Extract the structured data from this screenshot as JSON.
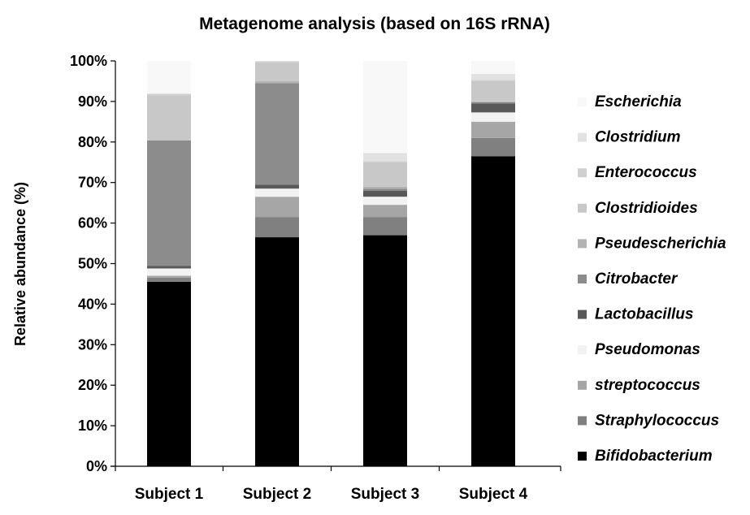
{
  "chart_data": {
    "type": "bar",
    "stacked": true,
    "title": "Metagenome analysis (based on 16S rRNA)",
    "xlabel": "",
    "ylabel": "Relative abundance (%)",
    "ylim": [
      0,
      100
    ],
    "y_ticks": [
      "0%",
      "10%",
      "20%",
      "30%",
      "40%",
      "50%",
      "60%",
      "70%",
      "80%",
      "90%",
      "100%"
    ],
    "categories": [
      "Subject 1",
      "Subject 2",
      "Subject 3",
      "Subject 4"
    ],
    "legend_position": "right",
    "series": [
      {
        "name": "Bifidobacterium",
        "color": "#000000",
        "values": [
          45.5,
          56.5,
          57.0,
          76.5
        ]
      },
      {
        "name": "Straphylococcus",
        "color": "#808080",
        "values": [
          1.0,
          5.0,
          4.5,
          4.5
        ]
      },
      {
        "name": "streptococcus",
        "color": "#a6a6a6",
        "values": [
          0.5,
          5.0,
          3.0,
          4.0
        ]
      },
      {
        "name": "Pseudomonas",
        "color": "#f2f2f2",
        "values": [
          1.8,
          2.0,
          2.0,
          2.3
        ]
      },
      {
        "name": "Lactobacillus",
        "color": "#595959",
        "values": [
          0.6,
          1.0,
          1.5,
          2.2
        ]
      },
      {
        "name": "Citrobacter",
        "color": "#8c8c8c",
        "values": [
          31.0,
          25.0,
          0.5,
          0.3
        ]
      },
      {
        "name": "Pseudescherichia",
        "color": "#b3b3b3",
        "values": [
          0.1,
          0.5,
          0.5,
          0.2
        ]
      },
      {
        "name": "Clostridioides",
        "color": "#c8c8c8",
        "values": [
          11.0,
          4.5,
          6.0,
          5.0
        ]
      },
      {
        "name": "Enterococcus",
        "color": "#d0d0d0",
        "values": [
          0.3,
          0.3,
          0.3,
          0.3
        ]
      },
      {
        "name": "Clostridium",
        "color": "#e2e2e2",
        "values": [
          0.2,
          0.2,
          2.0,
          1.5
        ]
      },
      {
        "name": "Escherichia",
        "color": "#f8f8f8",
        "values": [
          8.0,
          0.0,
          22.7,
          3.2
        ]
      }
    ]
  }
}
